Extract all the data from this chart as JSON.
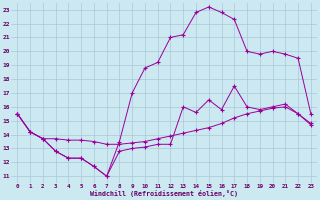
{
  "xlabel": "Windchill (Refroidissement éolien,°C)",
  "bg_color": "#cce8f0",
  "line_color": "#990099",
  "grid_color": "#aac8d8",
  "xlim": [
    -0.5,
    23.5
  ],
  "ylim": [
    10.5,
    23.5
  ],
  "xticks": [
    0,
    1,
    2,
    3,
    4,
    5,
    6,
    7,
    8,
    9,
    10,
    11,
    12,
    13,
    14,
    15,
    16,
    17,
    18,
    19,
    20,
    21,
    22,
    23
  ],
  "yticks": [
    11,
    12,
    13,
    14,
    15,
    16,
    17,
    18,
    19,
    20,
    21,
    22,
    23
  ],
  "line1_x": [
    0,
    1,
    2,
    3,
    4,
    5,
    6,
    7,
    8,
    9,
    10,
    11,
    12,
    13,
    14,
    15,
    16,
    17,
    18,
    19,
    20,
    21,
    22,
    23
  ],
  "line1_y": [
    15.5,
    14.2,
    13.7,
    12.8,
    12.3,
    12.3,
    11.7,
    11.0,
    12.8,
    13.0,
    13.1,
    13.3,
    13.3,
    16.0,
    15.6,
    16.5,
    15.8,
    17.5,
    16.0,
    15.8,
    16.0,
    16.2,
    15.5,
    14.8
  ],
  "line2_x": [
    0,
    1,
    2,
    3,
    4,
    5,
    6,
    7,
    8,
    9,
    10,
    11,
    12,
    13,
    14,
    15,
    16,
    17,
    18,
    19,
    20,
    21,
    22,
    23
  ],
  "line2_y": [
    15.5,
    14.2,
    13.7,
    12.8,
    12.3,
    12.3,
    11.7,
    11.0,
    13.5,
    17.0,
    18.8,
    19.2,
    21.0,
    21.2,
    22.8,
    23.2,
    22.8,
    22.3,
    20.0,
    19.8,
    20.0,
    19.8,
    19.5,
    15.5
  ],
  "line3_x": [
    0,
    1,
    2,
    3,
    4,
    5,
    6,
    7,
    8,
    9,
    10,
    11,
    12,
    13,
    14,
    15,
    16,
    17,
    18,
    19,
    20,
    21,
    22,
    23
  ],
  "line3_y": [
    15.5,
    14.2,
    13.7,
    13.7,
    13.6,
    13.6,
    13.5,
    13.3,
    13.3,
    13.4,
    13.5,
    13.7,
    13.9,
    14.1,
    14.3,
    14.5,
    14.8,
    15.2,
    15.5,
    15.7,
    15.9,
    16.0,
    15.5,
    14.7
  ]
}
